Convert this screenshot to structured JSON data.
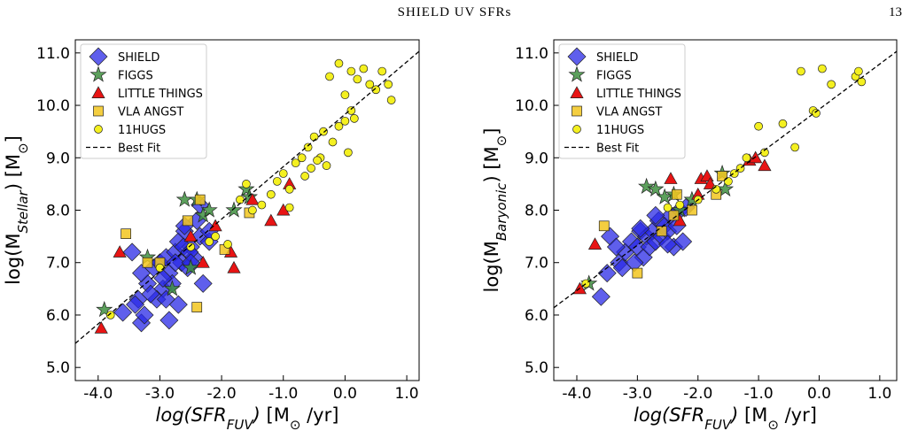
{
  "header": {
    "title": "SHIELD UV SFRs",
    "page": "13"
  },
  "chart_data": [
    {
      "type": "scatter",
      "ylabel_parts": [
        {
          "text": "log(M"
        },
        {
          "text": "Stellar",
          "sub": true,
          "italic": true
        },
        {
          "text": ") [M"
        },
        {
          "text": "⊙",
          "sub": true
        },
        {
          "text": "]"
        }
      ],
      "xlabel_parts": [
        {
          "text": "log(SFR",
          "italic": true
        },
        {
          "text": "FUV",
          "sub": true,
          "italic": true
        },
        {
          "text": ")",
          "italic": true
        },
        {
          "text": " [M"
        },
        {
          "text": "⊙",
          "sub": true
        },
        {
          "text": " /yr]"
        }
      ],
      "xlim": [
        -4.37,
        1.2
      ],
      "ylim": [
        4.75,
        11.25
      ],
      "xticks": [
        {
          "value": -4,
          "label": "-4.0"
        },
        {
          "value": -3,
          "label": "-3.0"
        },
        {
          "value": -2,
          "label": "-2.0"
        },
        {
          "value": -1,
          "label": "-1.0"
        },
        {
          "value": 0,
          "label": "0.0"
        },
        {
          "value": 1,
          "label": "1.0"
        }
      ],
      "yticks": [
        {
          "value": 5,
          "label": "5.0"
        },
        {
          "value": 6,
          "label": "6.0"
        },
        {
          "value": 7,
          "label": "7.0"
        },
        {
          "value": 8,
          "label": "8.0"
        },
        {
          "value": 9,
          "label": "9.0"
        },
        {
          "value": 10,
          "label": "10.0"
        },
        {
          "value": 11,
          "label": "11.0"
        }
      ],
      "series": [
        {
          "name": "SHIELD",
          "color": "#2a2ae6",
          "marker": "diamond",
          "x": [
            -3.45,
            -3.35,
            -3.3,
            -3.2,
            -3.1,
            -3.0,
            -2.95,
            -2.9,
            -2.85,
            -2.8,
            -2.75,
            -2.7,
            -2.65,
            -2.6,
            -2.55,
            -2.5,
            -2.45,
            -2.4,
            -2.35,
            -2.3,
            -2.2,
            -3.6,
            -3.4,
            -3.25,
            -3.05,
            -2.95,
            -2.85,
            -2.75,
            -2.62,
            -2.52,
            -3.15,
            -2.9,
            -2.7,
            -2.5,
            -3.3,
            -2.2,
            -2.35,
            -2.6
          ],
          "y": [
            7.2,
            6.3,
            5.85,
            6.6,
            6.9,
            7.0,
            6.5,
            7.1,
            6.8,
            6.6,
            7.2,
            7.4,
            7.0,
            7.6,
            6.9,
            7.3,
            7.1,
            7.8,
            7.5,
            6.6,
            7.4,
            6.05,
            6.2,
            6.0,
            6.3,
            6.7,
            5.9,
            7.0,
            7.3,
            7.2,
            6.4,
            6.3,
            6.2,
            7.0,
            6.8,
            7.6,
            8.1,
            7.7
          ]
        },
        {
          "name": "FIGGS",
          "color": "#3f8f3f",
          "marker": "star",
          "x": [
            -3.9,
            -2.6,
            -2.4,
            -2.3,
            -2.2,
            -1.6,
            -1.55,
            -3.2,
            -2.8,
            -2.5,
            -1.8
          ],
          "y": [
            6.1,
            8.2,
            8.2,
            7.9,
            8.0,
            8.4,
            8.25,
            7.1,
            6.5,
            6.9,
            8.0
          ]
        },
        {
          "name": "LITTLE THINGS",
          "color": "#e81414",
          "marker": "triangle",
          "x": [
            -3.95,
            -3.65,
            -2.5,
            -2.3,
            -2.1,
            -1.8,
            -1.85,
            -1.2,
            -1.0,
            -0.9,
            -1.5
          ],
          "y": [
            5.75,
            7.2,
            7.5,
            7.0,
            7.7,
            6.9,
            7.2,
            7.8,
            8.0,
            8.5,
            8.2
          ]
        },
        {
          "name": "VLA ANGST",
          "color": "#f2c61f",
          "marker": "square",
          "x": [
            -3.55,
            -3.0,
            -2.4,
            -2.35,
            -1.95,
            -1.55,
            -2.55,
            -3.2
          ],
          "y": [
            7.55,
            7.0,
            6.15,
            8.2,
            7.25,
            7.95,
            7.8,
            7.0
          ]
        },
        {
          "name": "11HUGS",
          "color": "#f4f020",
          "marker": "circle",
          "x": [
            -2.5,
            -2.2,
            -2.1,
            -1.9,
            -1.7,
            -1.5,
            -1.35,
            -1.2,
            -1.1,
            -1.0,
            -0.9,
            -0.8,
            -0.7,
            -0.6,
            -0.55,
            -0.5,
            -0.4,
            -0.35,
            -0.3,
            -0.2,
            -0.1,
            0.0,
            0.05,
            0.1,
            0.15,
            0.2,
            0.3,
            0.4,
            0.5,
            0.6,
            0.7,
            0.75,
            -0.25,
            -0.1,
            0.0,
            0.1,
            -1.6,
            -0.9,
            -0.65,
            -0.45,
            -3.8,
            -3.0
          ],
          "y": [
            7.3,
            7.4,
            7.5,
            7.35,
            8.2,
            8.0,
            8.1,
            8.3,
            8.55,
            8.7,
            8.4,
            8.9,
            9.0,
            9.2,
            8.8,
            9.4,
            9.0,
            9.5,
            8.85,
            9.3,
            9.6,
            9.7,
            9.1,
            9.9,
            9.75,
            10.5,
            10.7,
            10.4,
            10.3,
            10.65,
            10.4,
            10.1,
            10.55,
            10.8,
            10.2,
            10.65,
            8.5,
            8.05,
            8.65,
            8.95,
            6.0,
            6.9
          ]
        },
        {
          "name": "Best Fit",
          "color": "#000000",
          "marker": "dashed-line",
          "x": [
            -4.37,
            1.2
          ],
          "y": [
            5.46,
            11.03
          ]
        }
      ]
    },
    {
      "type": "scatter",
      "ylabel_parts": [
        {
          "text": "log(M"
        },
        {
          "text": "Baryonic",
          "sub": true,
          "italic": true
        },
        {
          "text": ") [M"
        },
        {
          "text": "⊙",
          "sub": true
        },
        {
          "text": "]"
        }
      ],
      "xlabel_parts": [
        {
          "text": "log(SFR",
          "italic": true
        },
        {
          "text": "FUV",
          "sub": true,
          "italic": true
        },
        {
          "text": ")",
          "italic": true
        },
        {
          "text": " [M"
        },
        {
          "text": "⊙",
          "sub": true
        },
        {
          "text": " /yr]"
        }
      ],
      "xlim": [
        -4.38,
        1.28
      ],
      "ylim": [
        4.75,
        11.25
      ],
      "xticks": [
        {
          "value": -4,
          "label": "-4.0"
        },
        {
          "value": -3,
          "label": "-3.0"
        },
        {
          "value": -2,
          "label": "-2.0"
        },
        {
          "value": -1,
          "label": "-1.0"
        },
        {
          "value": 0,
          "label": "0.0"
        },
        {
          "value": 1,
          "label": "1.0"
        }
      ],
      "yticks": [
        {
          "value": 5,
          "label": "5.0"
        },
        {
          "value": 6,
          "label": "6.0"
        },
        {
          "value": 7,
          "label": "7.0"
        },
        {
          "value": 8,
          "label": "8.0"
        },
        {
          "value": 9,
          "label": "9.0"
        },
        {
          "value": 10,
          "label": "10.0"
        },
        {
          "value": 11,
          "label": "11.0"
        }
      ],
      "series": [
        {
          "name": "SHIELD",
          "color": "#2a2ae6",
          "marker": "diamond",
          "x": [
            -3.6,
            -3.5,
            -3.45,
            -3.3,
            -3.2,
            -3.1,
            -3.0,
            -2.95,
            -2.9,
            -2.85,
            -2.8,
            -2.75,
            -2.7,
            -2.65,
            -2.6,
            -2.55,
            -2.5,
            -2.45,
            -2.4,
            -2.35,
            -2.3,
            -2.2,
            -2.25,
            -3.35,
            -3.05,
            -2.95,
            -2.7,
            -2.5,
            -3.25
          ],
          "y": [
            6.35,
            6.8,
            7.5,
            7.0,
            7.2,
            7.4,
            7.3,
            7.6,
            7.1,
            7.5,
            7.3,
            7.6,
            7.4,
            7.8,
            7.5,
            7.7,
            7.6,
            7.9,
            7.3,
            7.7,
            8.0,
            8.05,
            7.4,
            7.3,
            7.0,
            7.65,
            7.9,
            7.35,
            6.9
          ]
        },
        {
          "name": "FIGGS",
          "color": "#3f8f3f",
          "marker": "star",
          "x": [
            -3.8,
            -2.85,
            -2.7,
            -2.55,
            -2.4,
            -2.3,
            -1.6,
            -1.55,
            -2.1
          ],
          "y": [
            6.6,
            8.45,
            8.4,
            8.25,
            8.3,
            8.0,
            8.7,
            8.4,
            8.2
          ]
        },
        {
          "name": "LITTLE THINGS",
          "color": "#e81414",
          "marker": "triangle",
          "x": [
            -3.95,
            -3.7,
            -2.45,
            -2.3,
            -2.0,
            -1.95,
            -1.85,
            -1.15,
            -1.05,
            -0.9,
            -1.8
          ],
          "y": [
            6.5,
            7.35,
            8.6,
            7.8,
            8.3,
            8.6,
            8.65,
            8.95,
            9.0,
            8.85,
            8.5
          ]
        },
        {
          "name": "VLA ANGST",
          "color": "#f2c61f",
          "marker": "square",
          "x": [
            -3.55,
            -3.0,
            -2.4,
            -2.35,
            -2.1,
            -1.7,
            -1.6,
            -2.6
          ],
          "y": [
            7.7,
            6.8,
            7.9,
            8.3,
            8.0,
            8.3,
            8.65,
            7.6
          ]
        },
        {
          "name": "11HUGS",
          "color": "#f4f020",
          "marker": "circle",
          "x": [
            -3.85,
            -2.5,
            -2.3,
            -2.0,
            -1.7,
            -1.4,
            -1.2,
            -1.0,
            -0.9,
            -0.6,
            -0.4,
            -0.3,
            -0.1,
            -0.05,
            0.05,
            0.2,
            0.6,
            0.65,
            0.7,
            -1.5,
            -1.3
          ],
          "y": [
            6.6,
            8.05,
            8.1,
            8.2,
            8.4,
            8.7,
            9.0,
            9.6,
            9.1,
            9.65,
            9.2,
            10.65,
            9.9,
            9.85,
            10.7,
            10.4,
            10.55,
            10.65,
            10.45,
            8.55,
            8.8
          ]
        },
        {
          "name": "Best Fit",
          "color": "#000000",
          "marker": "dashed-line",
          "x": [
            -4.38,
            1.28
          ],
          "y": [
            6.14,
            11.03
          ]
        }
      ]
    }
  ]
}
